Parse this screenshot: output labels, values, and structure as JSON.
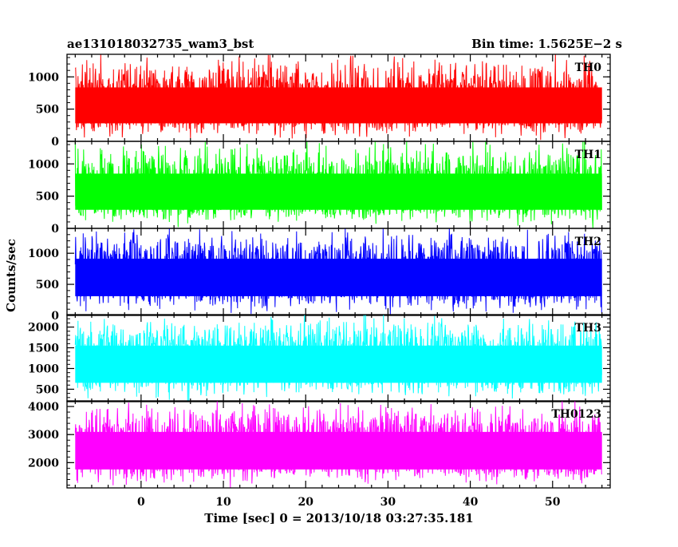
{
  "header": {
    "left_title": "ae131018032735_wam3_bst",
    "right_title": "Bin time: 1.5625E−2 s"
  },
  "chart_data": {
    "type": "line",
    "xlabel": "Time [sec] 0 = 2013/10/18 03:27:35.181",
    "ylabel": "Counts/sec",
    "xlim": [
      -9,
      57
    ],
    "data_x_range": [
      -8,
      56
    ],
    "x_ticks": [
      0,
      10,
      20,
      30,
      40,
      50
    ],
    "x_tick_labels": [
      "0",
      "10",
      "20",
      "30",
      "40",
      "50"
    ],
    "grid": false,
    "panels": [
      {
        "name": "TH0",
        "color": "#ff0000",
        "ylim": [
          0,
          1350
        ],
        "y_ticks": [
          0,
          500,
          1000
        ],
        "y_tick_labels": [
          "0",
          "500",
          "1000"
        ],
        "mean": 560,
        "noise_low": 50,
        "noise_high": 1350
      },
      {
        "name": "TH1",
        "color": "#00ff00",
        "ylim": [
          0,
          1350
        ],
        "y_ticks": [
          0,
          500,
          1000
        ],
        "y_tick_labels": [
          "0",
          "500",
          "1000"
        ],
        "mean": 580,
        "noise_low": 50,
        "noise_high": 1350
      },
      {
        "name": "TH2",
        "color": "#0000ff",
        "ylim": [
          0,
          1400
        ],
        "y_ticks": [
          0,
          500,
          1000
        ],
        "y_tick_labels": [
          "0",
          "500",
          "1000"
        ],
        "mean": 650,
        "noise_low": 30,
        "noise_high": 1400
      },
      {
        "name": "TH3",
        "color": "#00ffff",
        "ylim": [
          200,
          2300
        ],
        "y_ticks": [
          500,
          1000,
          1500,
          2000
        ],
        "y_tick_labels": [
          "500",
          "1000",
          "1500",
          "2000"
        ],
        "mean": 1150,
        "noise_low": 250,
        "noise_high": 2300
      },
      {
        "name": "TH0123",
        "color": "#ff00ff",
        "ylim": [
          1100,
          4200
        ],
        "y_ticks": [
          2000,
          3000,
          4000
        ],
        "y_tick_labels": [
          "2000",
          "3000",
          "4000"
        ],
        "mean": 2500,
        "noise_low": 1150,
        "noise_high": 4200
      }
    ]
  }
}
